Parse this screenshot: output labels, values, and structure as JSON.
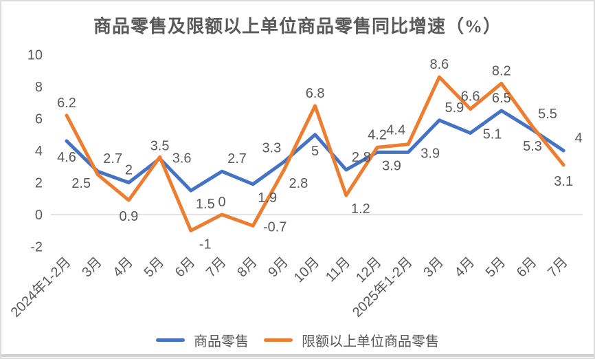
{
  "chart_data": {
    "type": "line",
    "title": "商品零售及限额以上单位商品零售同比增速（%）",
    "categories": [
      "2024年1-2月",
      "3月",
      "4月",
      "5月",
      "6月",
      "7月",
      "8月",
      "9月",
      "10月",
      "11月",
      "12月",
      "2025年1-2月",
      "3月",
      "4月",
      "5月",
      "6月",
      "7月"
    ],
    "series": [
      {
        "name": "商品零售",
        "color": "#4472C4",
        "values": [
          4.6,
          2.7,
          2,
          3.5,
          1.5,
          2.7,
          1.9,
          3.3,
          5,
          2.8,
          3.9,
          3.9,
          5.9,
          5.1,
          6.5,
          5.3,
          4
        ],
        "label_positions": [
          "below",
          "above-right",
          "above",
          "above",
          "below-right",
          "above-right",
          "below-right",
          "above-left",
          "below",
          "above-right",
          "below-right",
          "right",
          "above-right",
          "right",
          "above",
          "below",
          "above-right"
        ]
      },
      {
        "name": "限额以上单位商品零售",
        "color": "#ED7D31",
        "values": [
          6.2,
          2.5,
          0.9,
          3.6,
          -1,
          0,
          -0.7,
          2.8,
          6.8,
          1.2,
          4.2,
          4.4,
          8.6,
          6.6,
          8.2,
          5.5,
          3.1
        ],
        "label_positions": [
          "above",
          "below-left",
          "below",
          "right",
          "below-right",
          "above",
          "right",
          "below-right",
          "above",
          "below-right",
          "above",
          "above-left",
          "above",
          "above",
          "above",
          "above-right",
          "below"
        ]
      }
    ],
    "y_ticks": [
      10,
      8,
      6,
      4,
      2,
      0,
      -2
    ],
    "ylim": [
      -2,
      10
    ],
    "xlabel": "",
    "ylabel": "",
    "gridlines": "zero-line-only",
    "data_labels": true,
    "legend_position": "bottom",
    "label_color": "#595959",
    "axis_label_color": "#595959",
    "gridline_color": "#D9D9D9"
  }
}
